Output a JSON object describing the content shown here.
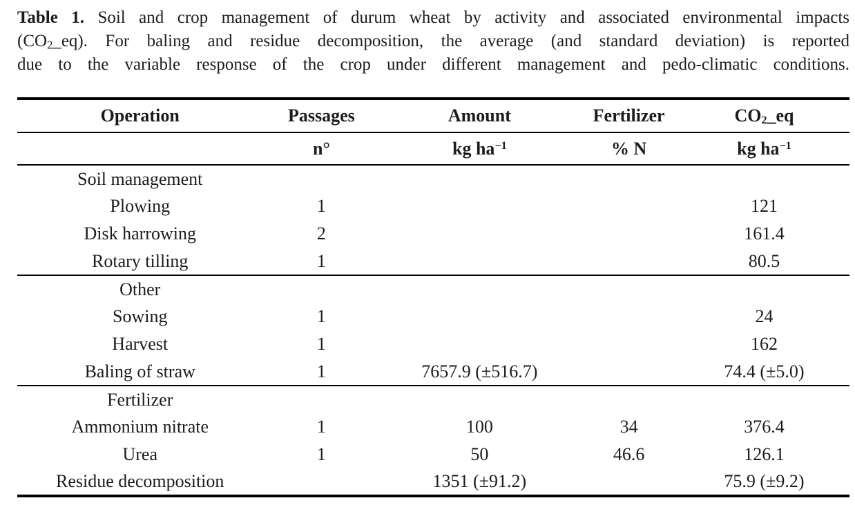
{
  "caption": {
    "label": "Table 1.",
    "line1_rest": "Soil and crop management of durum wheat by activity and associated environmental impacts",
    "line2_pre": "(CO",
    "line2_sub": "2",
    "line2_rest": "_eq). For baling and residue decomposition, the average (and standard deviation) is reported",
    "line3": "due to the variable response of the crop under different management and pedo-climatic conditions."
  },
  "table": {
    "header": {
      "operation": "Operation",
      "passages": "Passages",
      "amount": "Amount",
      "fertilizer": "Fertilizer",
      "co2_pre": "CO",
      "co2_sub": "2",
      "co2_rest": "_eq"
    },
    "units": {
      "passages": "n°",
      "amount_base": "kg ha",
      "amount_sup": "−1",
      "fertilizer": "% N",
      "co2_base": "kg ha",
      "co2_sup": "−1"
    },
    "column_names": [
      "operation",
      "passages",
      "amount",
      "fertilizer",
      "co2eq"
    ],
    "sections": [
      {
        "group": "Soil management",
        "rows": [
          [
            "Plowing",
            "1",
            "",
            "",
            "121"
          ],
          [
            "Disk harrowing",
            "2",
            "",
            "",
            "161.4"
          ],
          [
            "Rotary tilling",
            "1",
            "",
            "",
            "80.5"
          ]
        ]
      },
      {
        "group": "Other",
        "rows": [
          [
            "Sowing",
            "1",
            "",
            "",
            "24"
          ],
          [
            "Harvest",
            "1",
            "",
            "",
            "162"
          ],
          [
            "Baling of straw",
            "1",
            "7657.9 (±516.7)",
            "",
            "74.4 (±5.0)"
          ]
        ]
      },
      {
        "group": "Fertilizer",
        "rows": [
          [
            "Ammonium nitrate",
            "1",
            "100",
            "34",
            "376.4"
          ],
          [
            "Urea",
            "1",
            "50",
            "46.6",
            "126.1"
          ],
          [
            "Residue decomposition",
            "",
            "1351 (±91.2)",
            "",
            "75.9 (±9.2)"
          ]
        ]
      }
    ]
  },
  "colors": {
    "text": "#1c1c1c",
    "rule": "#000000",
    "background": "#ffffff"
  }
}
